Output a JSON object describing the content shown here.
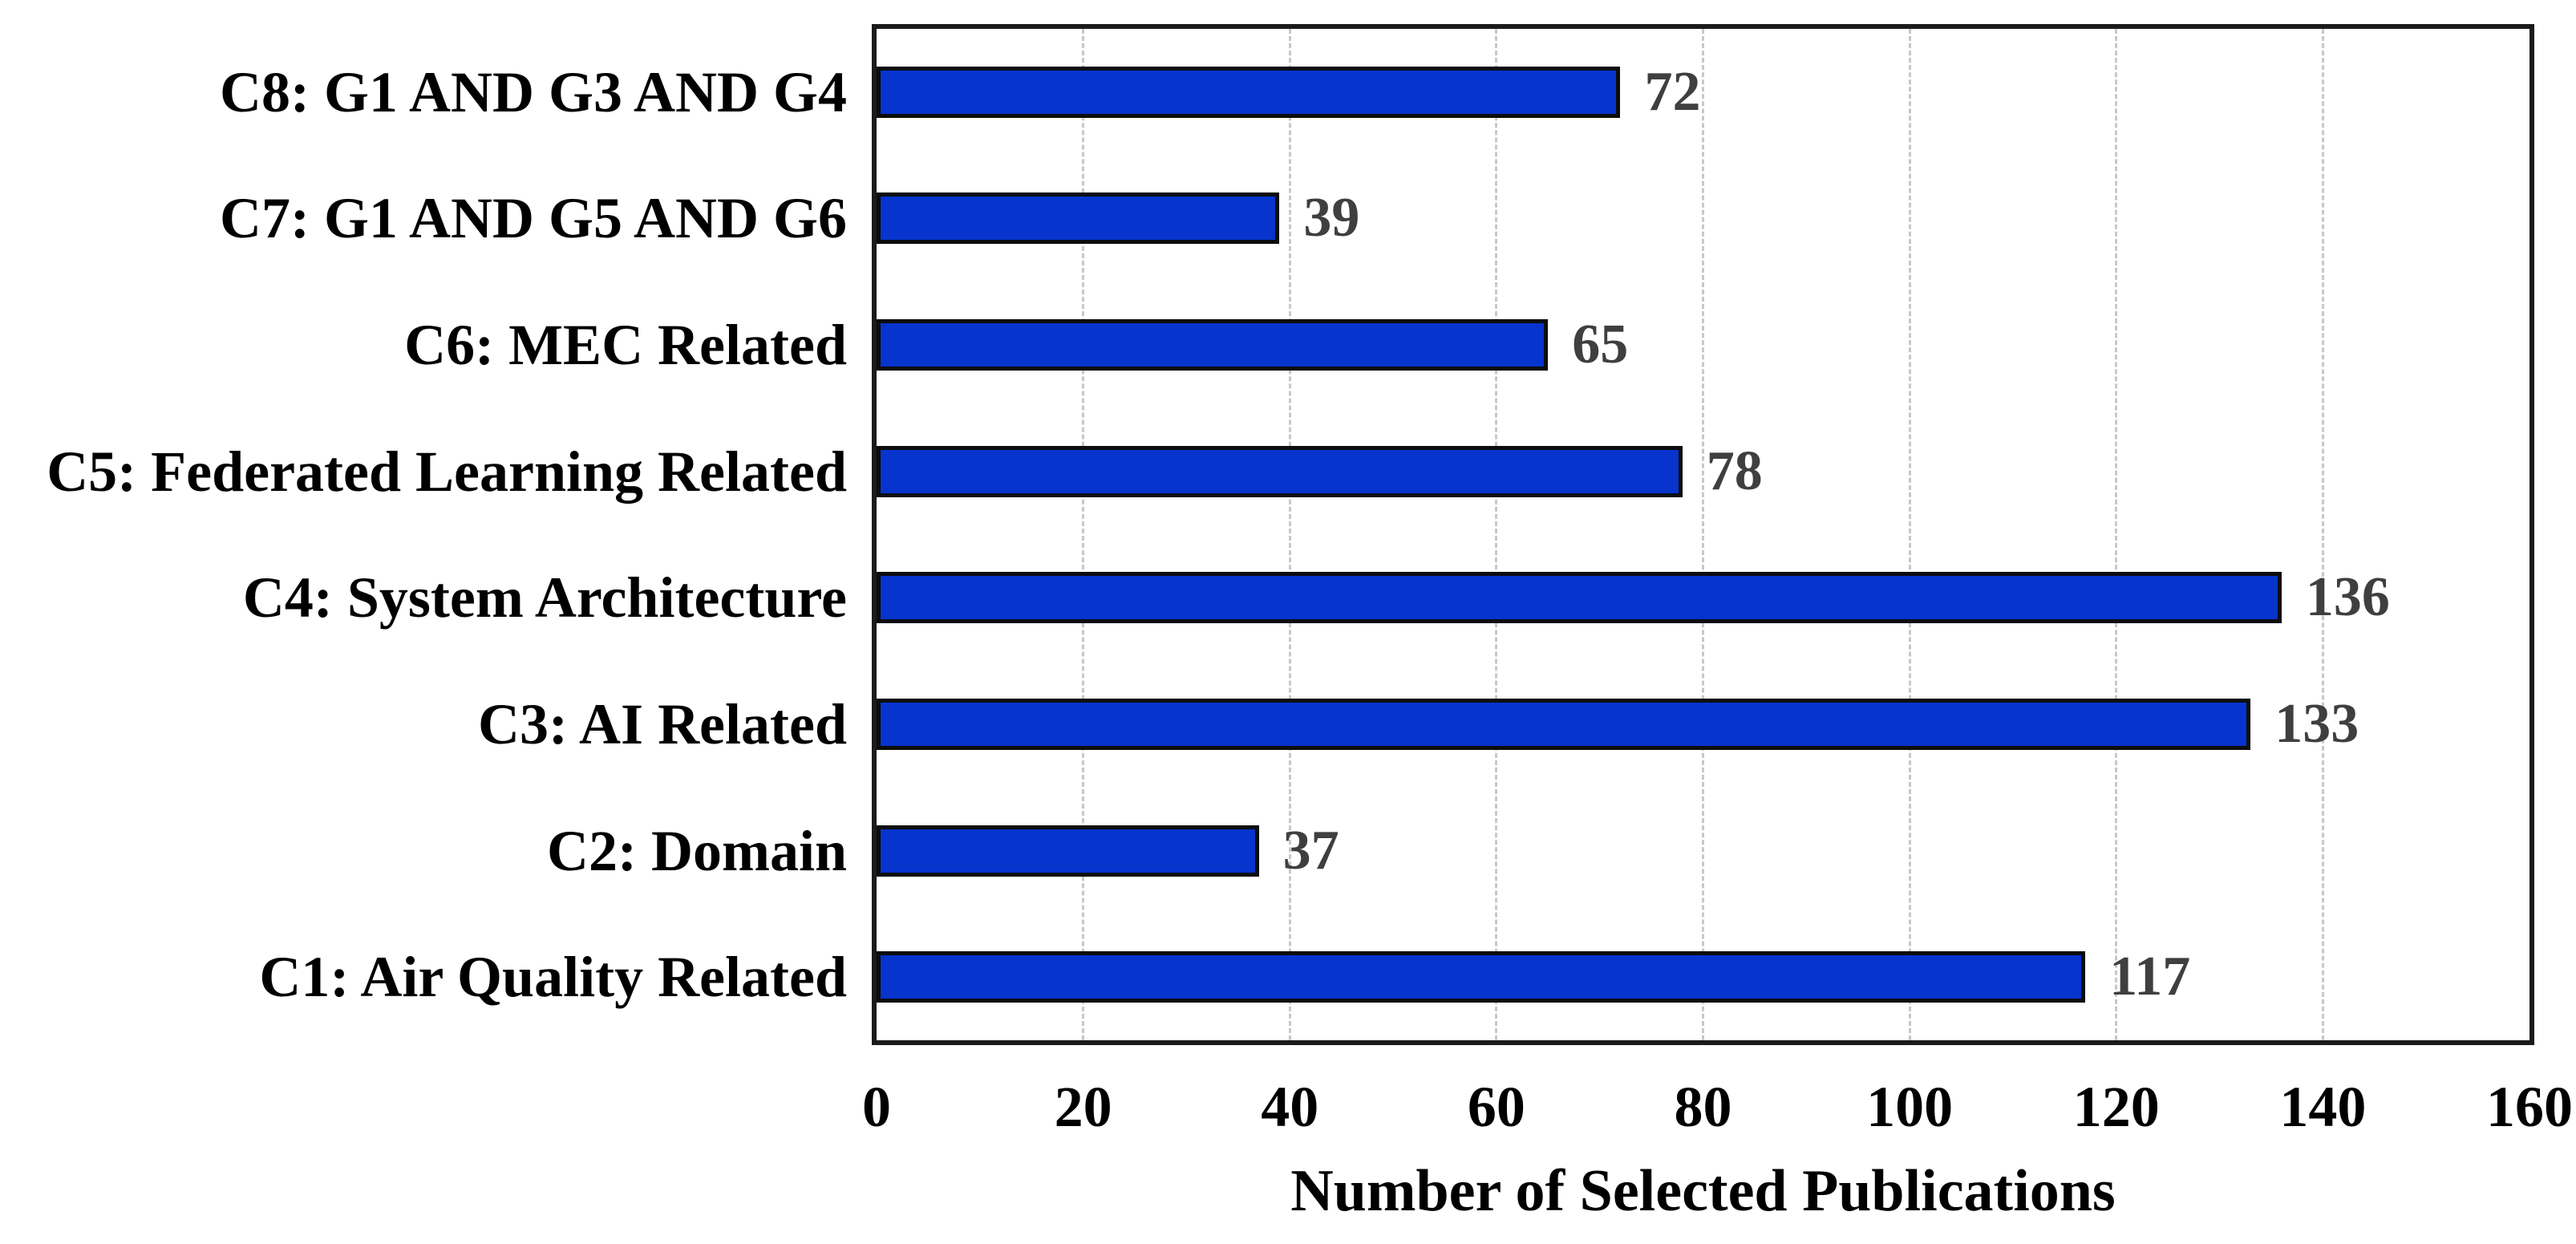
{
  "chart_data": {
    "type": "bar",
    "orientation": "horizontal",
    "title": "",
    "xlabel": "Number of Selected Publications",
    "ylabel": "",
    "categories": [
      "C1: Air Quality Related",
      "C2: Domain",
      "C3: AI Related",
      "C4: System Architecture",
      "C5: Federated Learning Related",
      "C6: MEC Related",
      "C7: G1 AND G5 AND G6",
      "C8: G1 AND G3 AND G4"
    ],
    "values": [
      117,
      37,
      133,
      136,
      78,
      65,
      39,
      72
    ],
    "value_labels": [
      "117",
      "37",
      "133",
      "136",
      "78",
      "65",
      "39",
      "72"
    ],
    "xlim": [
      0,
      160
    ],
    "xticks": [
      0,
      20,
      40,
      60,
      80,
      100,
      120,
      140,
      160
    ],
    "grid": true,
    "gridline_style": "dashed",
    "legend_position": "none",
    "colors": {
      "bar_fill": "#0634cd",
      "bar_border": "#0d0d0d",
      "frame_border": "#1b1b1b",
      "gridline": "#c8c8c8",
      "category_text": "#000000",
      "value_text": "#3f3f3f",
      "tick_text": "#000000",
      "background": "#ffffff"
    }
  }
}
